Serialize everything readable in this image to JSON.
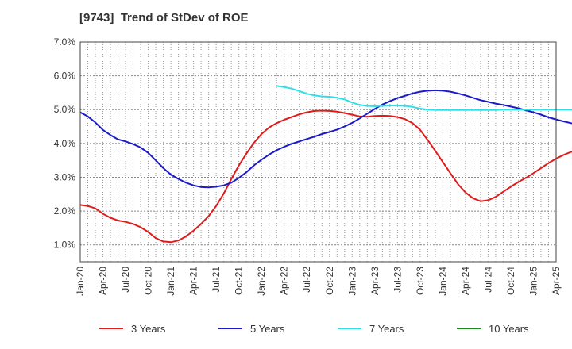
{
  "chart_data": {
    "type": "line",
    "title": "[9743]  Trend of StDev of ROE",
    "xlabel": "",
    "ylabel": "",
    "y_ticks": [
      "1.0%",
      "2.0%",
      "3.0%",
      "4.0%",
      "5.0%",
      "6.0%",
      "7.0%"
    ],
    "x_ticks": [
      "Jan-20",
      "Apr-20",
      "Jul-20",
      "Oct-20",
      "Jan-21",
      "Apr-21",
      "Jul-21",
      "Oct-21",
      "Jan-22",
      "Apr-22",
      "Jul-22",
      "Oct-22",
      "Jan-23",
      "Apr-23",
      "Jul-23",
      "Oct-23",
      "Jan-24",
      "Apr-24",
      "Jul-24",
      "Oct-24",
      "Jan-25",
      "Apr-25"
    ],
    "ylim": [
      0.5,
      7.0
    ],
    "x_unit": "month index from Jan-20",
    "grid": true,
    "legend_position": "bottom",
    "series": [
      {
        "name": "3 Years",
        "color": "#e01b1b",
        "points": [
          [
            0,
            2.18
          ],
          [
            1,
            2.15
          ],
          [
            2,
            2.08
          ],
          [
            3,
            1.92
          ],
          [
            4,
            1.8
          ],
          [
            5,
            1.72
          ],
          [
            6,
            1.68
          ],
          [
            7,
            1.62
          ],
          [
            8,
            1.52
          ],
          [
            9,
            1.38
          ],
          [
            10,
            1.2
          ],
          [
            11,
            1.1
          ],
          [
            12,
            1.08
          ],
          [
            13,
            1.13
          ],
          [
            14,
            1.25
          ],
          [
            15,
            1.42
          ],
          [
            16,
            1.62
          ],
          [
            17,
            1.85
          ],
          [
            18,
            2.15
          ],
          [
            19,
            2.52
          ],
          [
            20,
            2.95
          ],
          [
            21,
            3.35
          ],
          [
            22,
            3.7
          ],
          [
            23,
            4.02
          ],
          [
            24,
            4.28
          ],
          [
            25,
            4.47
          ],
          [
            26,
            4.6
          ],
          [
            27,
            4.7
          ],
          [
            28,
            4.78
          ],
          [
            29,
            4.86
          ],
          [
            30,
            4.92
          ],
          [
            31,
            4.96
          ],
          [
            32,
            4.97
          ],
          [
            33,
            4.96
          ],
          [
            34,
            4.94
          ],
          [
            35,
            4.9
          ],
          [
            36,
            4.85
          ],
          [
            37,
            4.8
          ],
          [
            38,
            4.79
          ],
          [
            39,
            4.81
          ],
          [
            40,
            4.82
          ],
          [
            41,
            4.81
          ],
          [
            42,
            4.78
          ],
          [
            43,
            4.72
          ],
          [
            44,
            4.6
          ],
          [
            45,
            4.4
          ],
          [
            46,
            4.1
          ],
          [
            47,
            3.78
          ],
          [
            48,
            3.45
          ],
          [
            49,
            3.12
          ],
          [
            50,
            2.8
          ],
          [
            51,
            2.55
          ],
          [
            52,
            2.38
          ],
          [
            53,
            2.29
          ],
          [
            54,
            2.32
          ],
          [
            55,
            2.42
          ],
          [
            56,
            2.57
          ],
          [
            57,
            2.72
          ],
          [
            58,
            2.86
          ],
          [
            59,
            2.98
          ],
          [
            60,
            3.12
          ],
          [
            61,
            3.27
          ],
          [
            62,
            3.42
          ],
          [
            63,
            3.55
          ],
          [
            64,
            3.66
          ],
          [
            65,
            3.75
          ],
          [
            66,
            3.82
          ]
        ]
      },
      {
        "name": "5 Years",
        "color": "#1a1acc",
        "points": [
          [
            0,
            4.92
          ],
          [
            1,
            4.8
          ],
          [
            2,
            4.62
          ],
          [
            3,
            4.4
          ],
          [
            4,
            4.25
          ],
          [
            5,
            4.12
          ],
          [
            6,
            4.06
          ],
          [
            7,
            3.98
          ],
          [
            8,
            3.88
          ],
          [
            9,
            3.72
          ],
          [
            10,
            3.5
          ],
          [
            11,
            3.27
          ],
          [
            12,
            3.08
          ],
          [
            13,
            2.95
          ],
          [
            14,
            2.84
          ],
          [
            15,
            2.76
          ],
          [
            16,
            2.71
          ],
          [
            17,
            2.7
          ],
          [
            18,
            2.72
          ],
          [
            19,
            2.76
          ],
          [
            20,
            2.84
          ],
          [
            21,
            2.98
          ],
          [
            22,
            3.15
          ],
          [
            23,
            3.35
          ],
          [
            24,
            3.52
          ],
          [
            25,
            3.67
          ],
          [
            26,
            3.8
          ],
          [
            27,
            3.9
          ],
          [
            28,
            3.99
          ],
          [
            29,
            4.06
          ],
          [
            30,
            4.13
          ],
          [
            31,
            4.2
          ],
          [
            32,
            4.28
          ],
          [
            33,
            4.34
          ],
          [
            34,
            4.41
          ],
          [
            35,
            4.5
          ],
          [
            36,
            4.61
          ],
          [
            37,
            4.74
          ],
          [
            38,
            4.88
          ],
          [
            39,
            5.02
          ],
          [
            40,
            5.15
          ],
          [
            41,
            5.25
          ],
          [
            42,
            5.34
          ],
          [
            43,
            5.41
          ],
          [
            44,
            5.48
          ],
          [
            45,
            5.53
          ],
          [
            46,
            5.56
          ],
          [
            47,
            5.57
          ],
          [
            48,
            5.56
          ],
          [
            49,
            5.53
          ],
          [
            50,
            5.48
          ],
          [
            51,
            5.42
          ],
          [
            52,
            5.35
          ],
          [
            53,
            5.28
          ],
          [
            54,
            5.23
          ],
          [
            55,
            5.18
          ],
          [
            56,
            5.14
          ],
          [
            57,
            5.09
          ],
          [
            58,
            5.04
          ],
          [
            59,
            4.98
          ],
          [
            60,
            4.92
          ],
          [
            61,
            4.85
          ],
          [
            62,
            4.77
          ],
          [
            63,
            4.71
          ],
          [
            64,
            4.65
          ],
          [
            65,
            4.6
          ],
          [
            66,
            4.56
          ]
        ]
      },
      {
        "name": "7 Years",
        "color": "#2de0e6",
        "points": [
          [
            26,
            5.7
          ],
          [
            27,
            5.67
          ],
          [
            28,
            5.62
          ],
          [
            29,
            5.55
          ],
          [
            30,
            5.47
          ],
          [
            31,
            5.42
          ],
          [
            32,
            5.39
          ],
          [
            33,
            5.38
          ],
          [
            34,
            5.35
          ],
          [
            35,
            5.3
          ],
          [
            36,
            5.21
          ],
          [
            37,
            5.14
          ],
          [
            38,
            5.11
          ],
          [
            39,
            5.1
          ],
          [
            40,
            5.11
          ],
          [
            41,
            5.12
          ],
          [
            42,
            5.12
          ],
          [
            43,
            5.11
          ],
          [
            44,
            5.08
          ],
          [
            45,
            5.03
          ],
          [
            46,
            5.0
          ],
          [
            47,
            4.99
          ],
          [
            48,
            4.99
          ],
          [
            49,
            4.99
          ],
          [
            50,
            4.99
          ],
          [
            51,
            4.99
          ],
          [
            52,
            4.99
          ],
          [
            53,
            4.99
          ],
          [
            54,
            4.99
          ],
          [
            55,
            4.99
          ],
          [
            56,
            5.0
          ],
          [
            57,
            5.0
          ],
          [
            58,
            5.0
          ],
          [
            59,
            5.0
          ],
          [
            60,
            5.0
          ],
          [
            61,
            5.0
          ],
          [
            62,
            5.0
          ],
          [
            63,
            5.0
          ],
          [
            64,
            5.0
          ],
          [
            65,
            5.0
          ],
          [
            66,
            5.0
          ]
        ]
      },
      {
        "name": "10 Years",
        "color": "#1a8a1a",
        "points": []
      }
    ]
  }
}
